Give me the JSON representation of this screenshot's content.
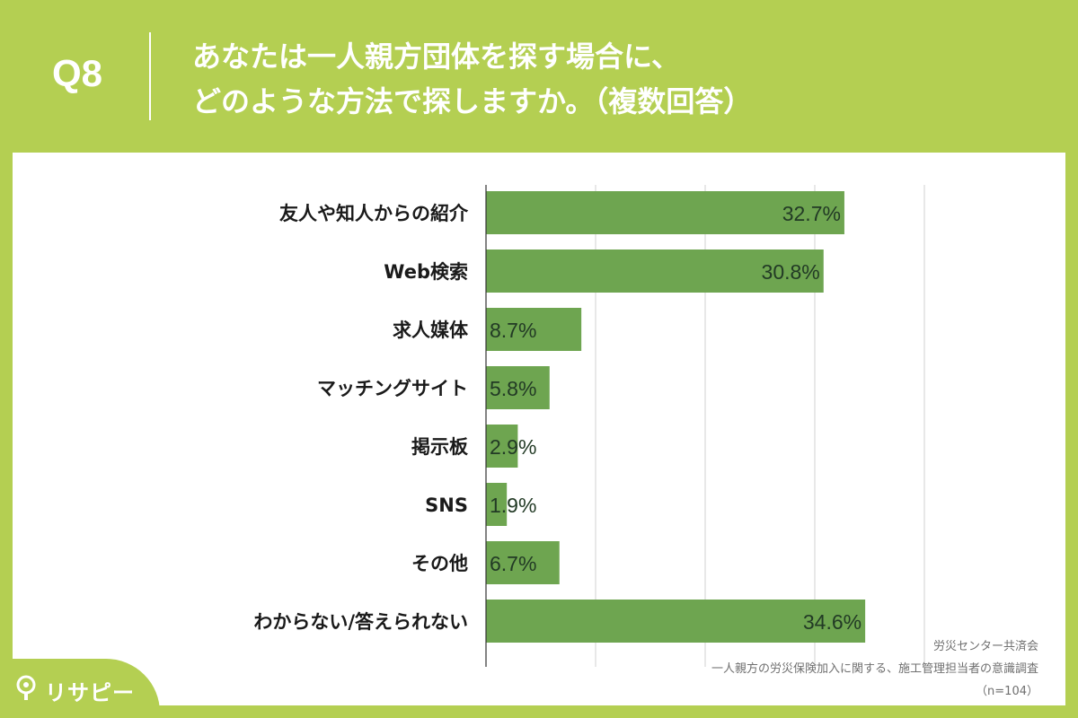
{
  "header": {
    "question_number": "Q8",
    "question_text": "あなたは一人親方団体を探す場合に、\nどのような方法で探しますか。（複数回答）"
  },
  "chart_data": {
    "type": "bar",
    "orientation": "horizontal",
    "categories": [
      "友人や知人からの紹介",
      "Web検索",
      "求人媒体",
      "マッチングサイト",
      "掲示板",
      "SNS",
      "その他",
      "わからない/答えられない"
    ],
    "values": [
      32.7,
      30.8,
      8.7,
      5.8,
      2.9,
      1.9,
      6.7,
      34.6
    ],
    "value_labels": [
      "32.7%",
      "30.8%",
      "8.7%",
      "5.8%",
      "2.9%",
      "1.9%",
      "6.7%",
      "34.6%"
    ],
    "xlim": [
      0,
      40
    ],
    "grid": true,
    "bar_color": "#6ea550"
  },
  "source": {
    "organization": "労災センター共済会",
    "survey_title": "一人親方の労災保険加入に関する、施工管理担当者の意識調査",
    "sample_size": "（n=104）"
  },
  "brand": {
    "name": "リサピー",
    "icon": "lightbulb-icon"
  },
  "colors": {
    "background": "#b4cf52",
    "bar": "#6ea550",
    "label_text": "#1a1a1a",
    "value_text": "#223a25"
  }
}
